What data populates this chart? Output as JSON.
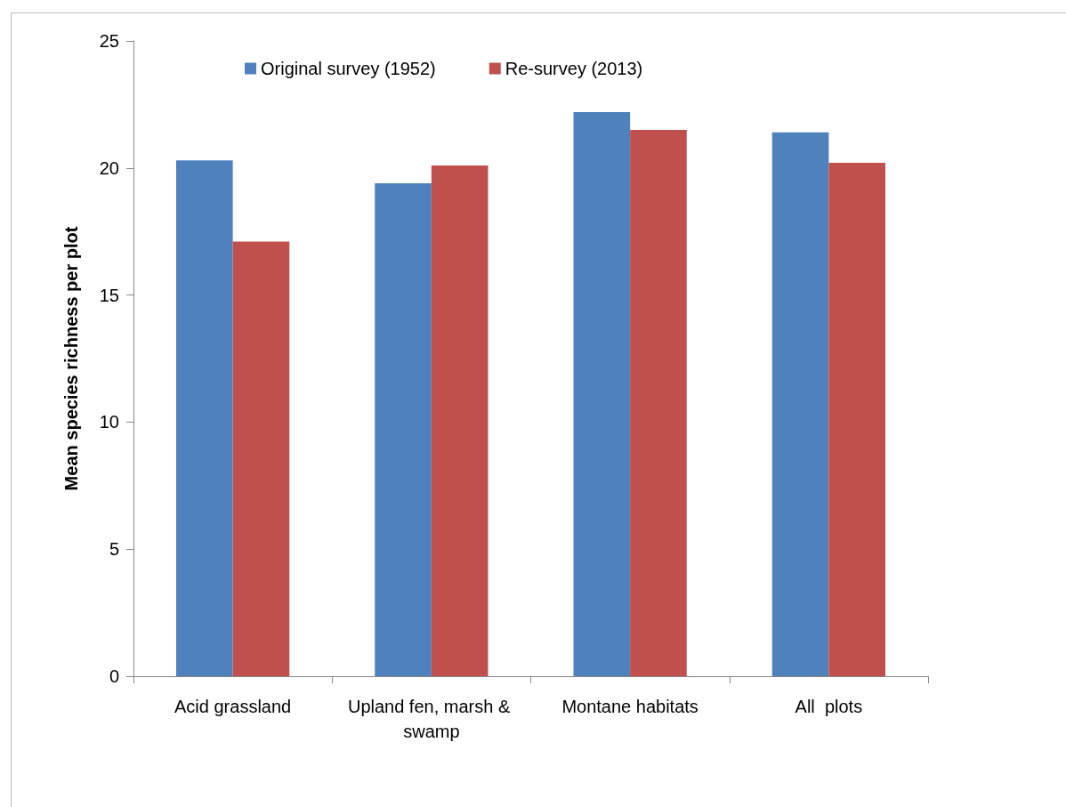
{
  "chart_data": {
    "type": "bar",
    "ylabel": "Mean species richness per plot",
    "categories": [
      "Acid grassland",
      "Upland fen, marsh & swamp",
      "Montane habitats",
      "All  plots"
    ],
    "series": [
      {
        "name": "Original survey (1952)",
        "color": "#4f81bd",
        "values": [
          20.3,
          19.4,
          22.2,
          21.4
        ]
      },
      {
        "name": "Re-survey (2013)",
        "color": "#c0504d",
        "values": [
          17.1,
          20.1,
          21.5,
          20.2
        ]
      }
    ],
    "ylim": [
      0,
      25
    ],
    "yticks": [
      0,
      5,
      10,
      15,
      20,
      25
    ],
    "grid": false,
    "legend": "top"
  }
}
